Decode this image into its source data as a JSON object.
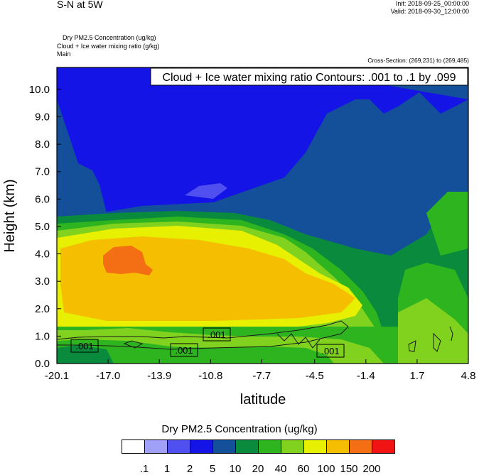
{
  "header": {
    "title": "S-N at 5W",
    "init": "Init: 2018-09-25_00:00:00",
    "valid": "Valid: 2018-09-30_12:00:00",
    "fields": [
      "Dry PM2.5 Concentration   (ug/kg)",
      "Cloud + Ice water mixing ratio   (g/kg)",
      "Main"
    ],
    "cross_section": "Cross-Section: (269,231) to (269,485)"
  },
  "chart_data": {
    "type": "heatmap",
    "title": "Cloud + Ice water mixing ratio Contours: .001 to .1 by .099",
    "xlabel": "latitude",
    "ylabel": "Height (km)",
    "xlim": [
      -20.1,
      4.8
    ],
    "ylim": [
      0.0,
      10.8
    ],
    "x_ticks": [
      "-20.1",
      "-17.0",
      "-13.9",
      "-10.8",
      "-7.7",
      "-4.5",
      "-1.4",
      "1.7",
      "4.8"
    ],
    "y_ticks": [
      "0.0",
      "1.0",
      "2.0",
      "3.0",
      "4.0",
      "5.0",
      "6.0",
      "7.0",
      "8.0",
      "9.0",
      "10.0"
    ],
    "contour_labels": [
      ".001",
      ".001",
      ".001",
      ".001"
    ],
    "colorbar": {
      "title": "Dry PM2.5 Concentration  (ug/kg)",
      "levels": [
        ".1",
        "1",
        "2",
        "5",
        "10",
        "20",
        "40",
        "60",
        "100",
        "150",
        "200"
      ],
      "colors": [
        "#ffffff",
        "#a0a0f8",
        "#5050f0",
        "#1414e6",
        "#14509a",
        "#0a8a3c",
        "#2eb41e",
        "#80d21e",
        "#e6f000",
        "#f6be00",
        "#f46e14",
        "#f01414"
      ]
    }
  }
}
